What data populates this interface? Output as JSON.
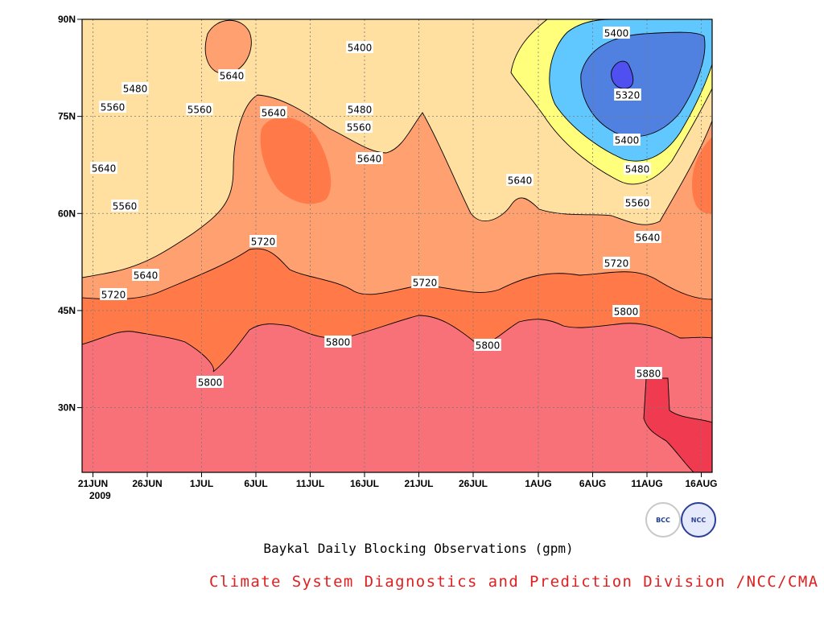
{
  "chart_data": {
    "type": "contour",
    "title": "Baykal Daily Blocking Observations (gpm)",
    "x_ticks": [
      "21JUN",
      "26JUN",
      "1JUL",
      "6JUL",
      "11JUL",
      "16JUL",
      "21JUL",
      "26JUL",
      "1AUG",
      "6AUG",
      "11AUG",
      "16AUG"
    ],
    "year_label": "2009",
    "y_ticks": [
      "90N",
      "75N",
      "60N",
      "45N",
      "30N"
    ],
    "x_range": [
      "2009-06-20",
      "2009-08-17"
    ],
    "y_range": [
      20,
      90
    ],
    "grid": true,
    "contour_levels": [
      5320,
      5400,
      5480,
      5560,
      5640,
      5720,
      5800,
      5880
    ],
    "contour_labels": [
      "5400",
      "5480",
      "5560",
      "5640",
      "5640",
      "5560",
      "5640",
      "5720",
      "5720",
      "5800",
      "5640",
      "5560",
      "5480",
      "5400",
      "5480",
      "5560",
      "5640",
      "5800",
      "5720",
      "5800",
      "5640",
      "5400",
      "5320",
      "5400",
      "5480",
      "5560",
      "5640",
      "5720",
      "5800",
      "5880"
    ],
    "colors": {
      "below_5320": "#5050f0",
      "5320_5400": "#5080e0",
      "5400_5480": "#60c8ff",
      "5480_5560": "#ffff7c",
      "5560_5640": "#ffe0a0",
      "5640_5720": "#ffa070",
      "5720_5800": "#ff7a48",
      "5800_5880": "#f87078",
      "above_5880": "#f03a50"
    }
  },
  "caption": "Baykal Daily Blocking Observations (gpm)",
  "credit": "Climate System Diagnostics and Prediction Division /NCC/CMA",
  "logos": {
    "left": "BCC",
    "right": "NCC"
  }
}
